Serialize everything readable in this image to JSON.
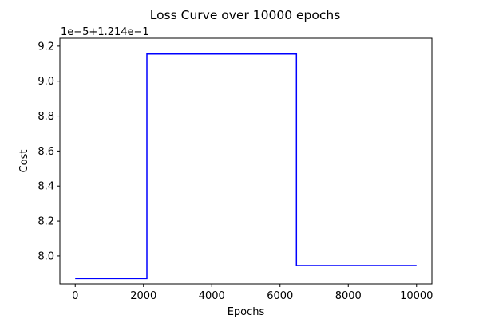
{
  "chart_data": {
    "type": "line",
    "title": "Loss Curve over 10000 epochs",
    "xlabel": "Epochs",
    "ylabel": "Cost",
    "axis_offset_text": "1e−5+1.214e−1",
    "x_ticks": [
      "0",
      "2000",
      "4000",
      "6000",
      "8000",
      "10000"
    ],
    "y_ticks": [
      "8.0",
      "8.2",
      "8.4",
      "8.6",
      "8.8",
      "9.0",
      "9.2"
    ],
    "xlim": [
      -450,
      10450
    ],
    "ylim": [
      7.84,
      9.245
    ],
    "grid": false,
    "line_color": "#0000ff",
    "series": [
      {
        "x": [
          0,
          2100,
          2100,
          6480,
          6480,
          10000
        ],
        "y": [
          7.87,
          7.87,
          9.155,
          9.155,
          7.945,
          7.945
        ]
      }
    ]
  }
}
